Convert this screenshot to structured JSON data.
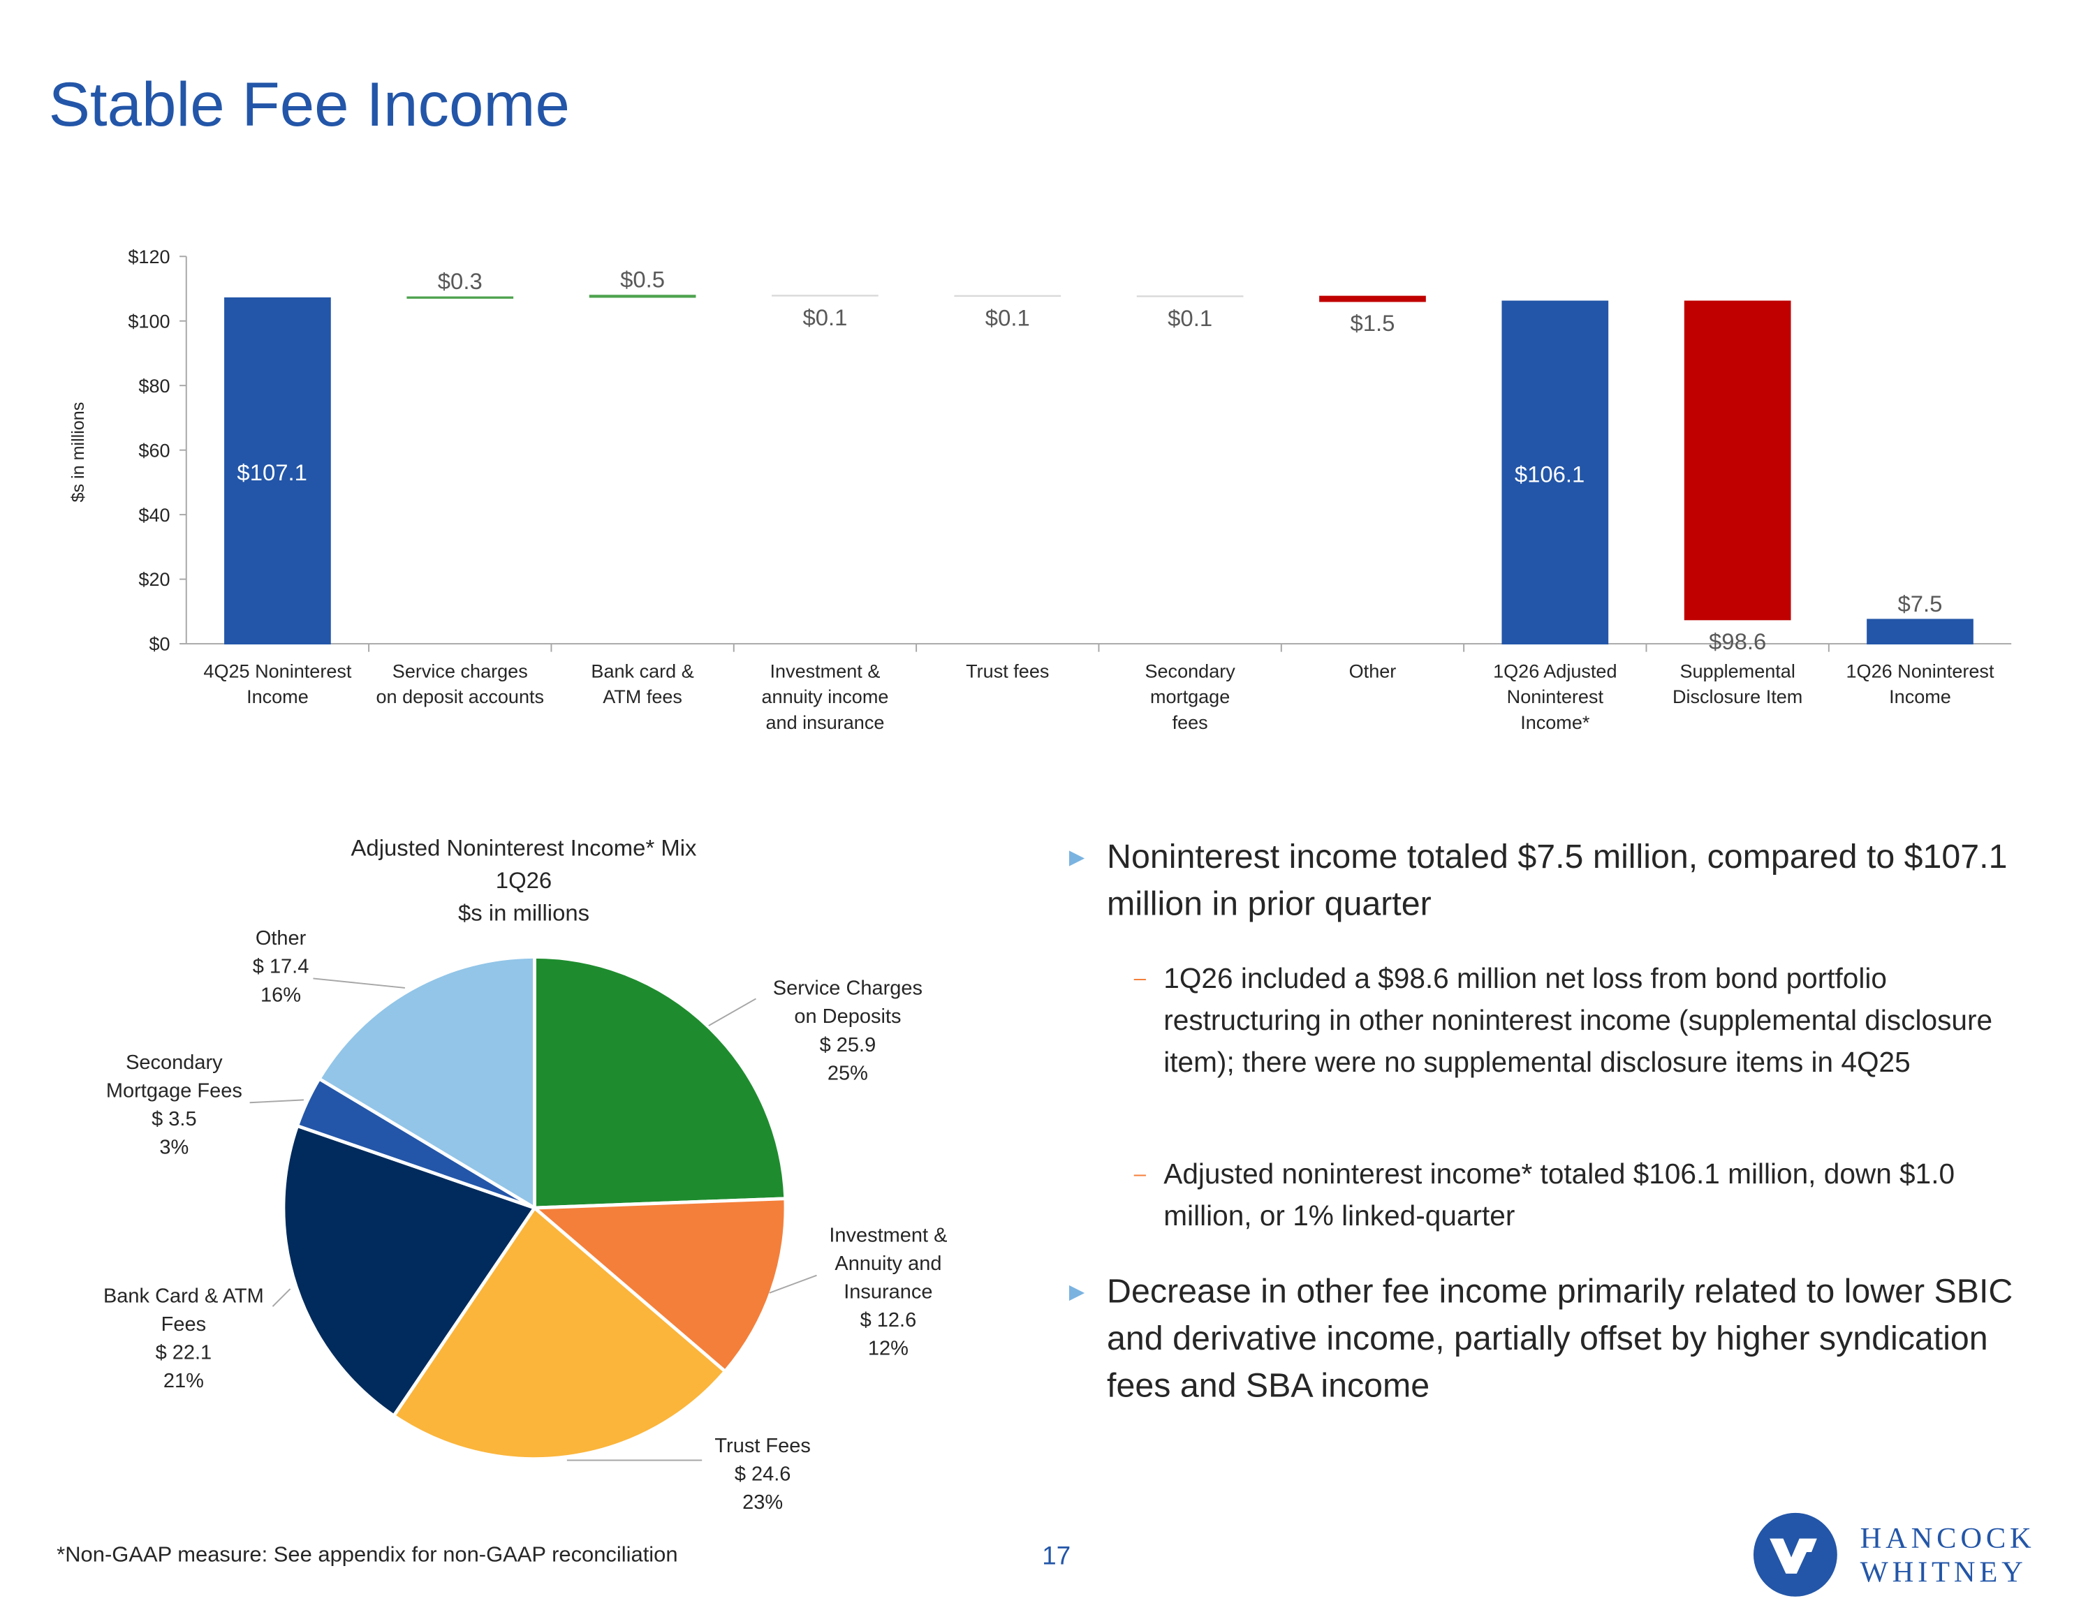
{
  "title": "Stable Fee Income",
  "chart_data": [
    {
      "type": "waterfall",
      "ylabel": "$s in millions",
      "categories": [
        [
          "4Q25 Noninterest",
          "Income"
        ],
        [
          "Service charges",
          "on deposit accounts"
        ],
        [
          "Bank card &",
          "ATM fees"
        ],
        [
          "Investment &",
          "annuity income",
          "and insurance"
        ],
        [
          "Trust fees"
        ],
        [
          "Secondary",
          "mortgage",
          "fees"
        ],
        [
          "Other"
        ],
        [
          "1Q26 Adjusted",
          "Noninterest",
          "Income*"
        ],
        [
          "Supplemental",
          "Disclosure Item"
        ],
        [
          "1Q26 Noninterest",
          "Income"
        ]
      ],
      "measure": [
        "absolute",
        "relative",
        "relative",
        "relative",
        "relative",
        "relative",
        "relative",
        "total",
        "relative",
        "total"
      ],
      "values": [
        107.1,
        0.3,
        0.5,
        -0.1,
        -0.1,
        -0.1,
        -1.5,
        106.1,
        -98.6,
        7.5
      ],
      "value_labels": [
        "$107.1",
        "$0.3",
        "$0.5",
        "$0.1",
        "$0.1",
        "$0.1",
        "$1.5",
        "$106.1",
        "$98.6",
        "$7.5"
      ],
      "colors": [
        "#2356a8",
        "#4ea24e",
        "#4ea24e",
        "#d9d9d9",
        "#d9d9d9",
        "#d9d9d9",
        "#c00000",
        "#2356a8",
        "#c00000",
        "#2356a8"
      ],
      "ylim": [
        0,
        120
      ],
      "yticks": [
        {
          "value": 0,
          "label": "$0"
        },
        {
          "value": 20,
          "label": "$20"
        },
        {
          "value": 40,
          "label": "$40"
        },
        {
          "value": 60,
          "label": "$60"
        },
        {
          "value": 80,
          "label": "$80"
        },
        {
          "value": 100,
          "label": "$100"
        },
        {
          "value": 120,
          "label": "$120"
        }
      ]
    },
    {
      "type": "pie",
      "title": [
        "Adjusted Noninterest Income* Mix",
        "1Q26",
        "$s in millions"
      ],
      "categories": [
        [
          "Service Charges",
          "on Deposits"
        ],
        [
          "Investment &",
          "Annuity and",
          "Insurance"
        ],
        [
          "Trust Fees"
        ],
        [
          "Bank Card & ATM",
          "Fees"
        ],
        [
          "Secondary",
          "Mortgage Fees"
        ],
        [
          "Other"
        ]
      ],
      "values": [
        25.9,
        12.6,
        24.6,
        22.1,
        3.5,
        17.4
      ],
      "value_labels": [
        "$ 25.9",
        "$ 12.6",
        "$ 24.6",
        "$ 22.1",
        "$ 3.5",
        "$ 17.4"
      ],
      "percents": [
        25,
        12,
        23,
        21,
        3,
        16
      ],
      "percent_labels": [
        "25%",
        "12%",
        "23%",
        "21%",
        "3%",
        "16%"
      ],
      "colors": [
        "#1e8c2e",
        "#f47f3a",
        "#fbb53b",
        "#002b5c",
        "#2356a8",
        "#92c5e8"
      ]
    }
  ],
  "bullets": [
    {
      "text": "Noninterest income totaled $7.5 million, compared to $107.1 million in prior quarter",
      "subs": [
        "1Q26 included a $98.6 million net loss from bond portfolio restructuring in other noninterest income (supplemental disclosure item); there were no supplemental disclosure items in 4Q25",
        "Adjusted noninterest income* totaled $106.1 million, down $1.0 million, or 1% linked-quarter"
      ]
    },
    {
      "text": "Decrease in other fee income primarily related to lower SBIC and derivative income, partially offset by higher syndication fees and SBA income",
      "subs": []
    }
  ],
  "footnote": "*Non-GAAP measure: See appendix for non-GAAP reconciliation",
  "page_number": "17",
  "logo": [
    "HANCOCK",
    "WHITNEY"
  ]
}
